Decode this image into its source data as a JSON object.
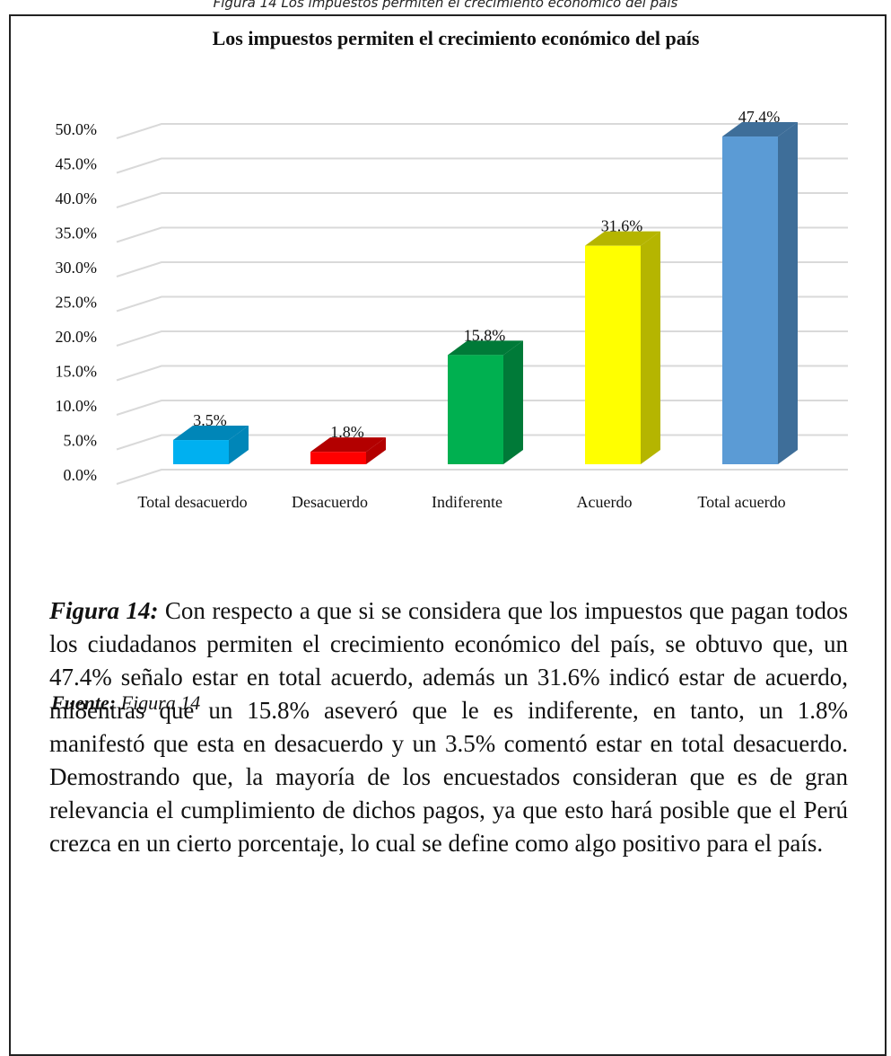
{
  "header": {
    "caption": "Figura 14 Los impuestos permiten el crecimiento económico del país"
  },
  "chart_data": {
    "type": "bar3d",
    "title": "Los impuestos permiten el crecimiento económico del país",
    "categories": [
      "Total desacuerdo",
      "Desacuerdo",
      "Indiferente",
      "Acuerdo",
      "Total acuerdo"
    ],
    "values": [
      3.5,
      1.8,
      15.8,
      31.6,
      47.4
    ],
    "value_labels": [
      "3.5%",
      "1.8%",
      "15.8%",
      "31.6%",
      "47.4%"
    ],
    "colors": [
      "#00b0f0",
      "#ff0000",
      "#00b050",
      "#ffff00",
      "#5b9bd5"
    ],
    "side_colors": [
      "#0086b8",
      "#b30000",
      "#007a38",
      "#b5b500",
      "#3e6e99"
    ],
    "ylim": [
      0,
      50
    ],
    "yticks": [
      {
        "value": 0,
        "label": "0.0%"
      },
      {
        "value": 5,
        "label": "5.0%"
      },
      {
        "value": 10,
        "label": "10.0%"
      },
      {
        "value": 15,
        "label": "15.0%"
      },
      {
        "value": 20,
        "label": "20.0%"
      },
      {
        "value": 25,
        "label": "25.0%"
      },
      {
        "value": 30,
        "label": "30.0%"
      },
      {
        "value": 35,
        "label": "35.0%"
      },
      {
        "value": 40,
        "label": "40.0%"
      },
      {
        "value": 45,
        "label": "45.0%"
      },
      {
        "value": 50,
        "label": "50.0%"
      }
    ],
    "grid": true
  },
  "body": {
    "label": "Figura 14:",
    "text": " Con respecto a que si se considera que los impuestos que pagan todos los ciudadanos permiten el crecimiento económico del país, se obtuvo que, un 47.4% señalo estar en total acuerdo, además un 31.6% indicó estar de acuerdo, mi8entras que un 15.8% aseveró que le es indiferente, en tanto, un 1.8% manifestó que esta en desacuerdo y un 3.5% comentó estar en total desacuerdo. Demostrando que, la mayoría de los encuestados consideran que es de gran relevancia el cumplimiento de dichos pagos, ya que esto hará posible que el Perú crezca en un cierto porcentaje, lo cual se define como algo positivo para el país."
  },
  "source": {
    "label": "Fuente:",
    "text": "Figura 14"
  }
}
